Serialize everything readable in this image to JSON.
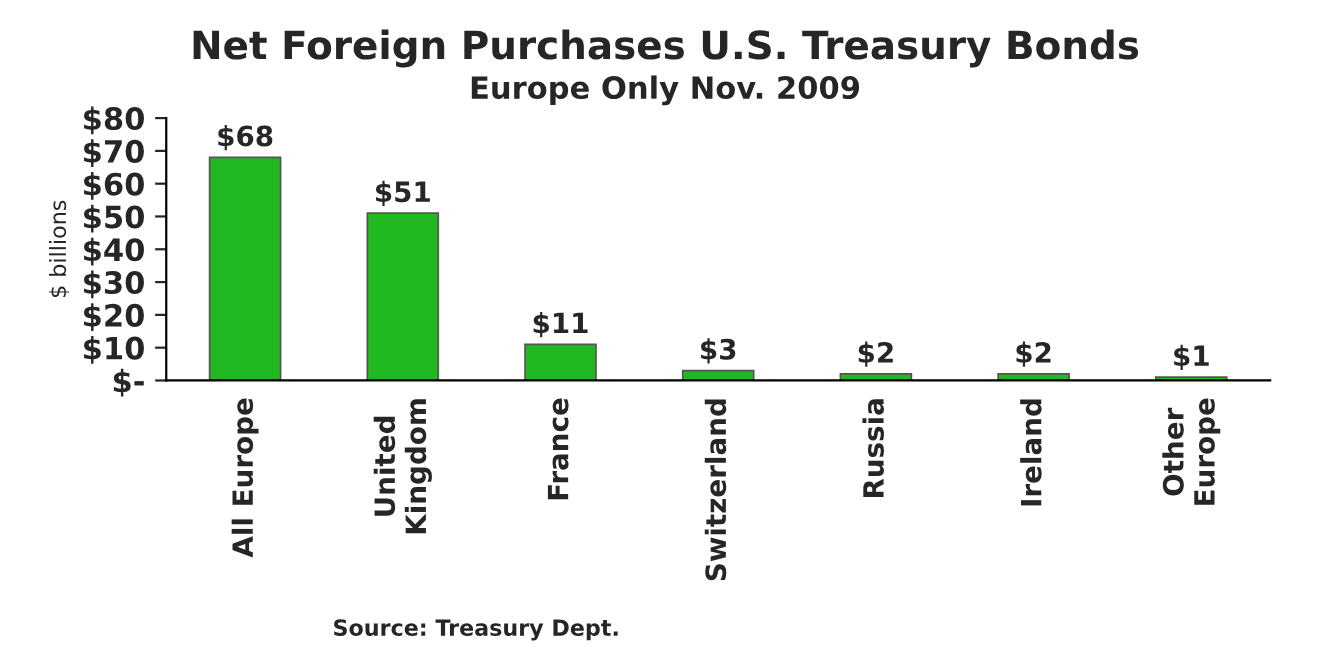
{
  "chart_data": {
    "type": "bar",
    "title": "Net Foreign Purchases U.S. Treasury Bonds",
    "subtitle": "Europe Only Nov. 2009",
    "ylabel": "$ billions",
    "categories": [
      "All Europe",
      "United\nKingdom",
      "France",
      "Switzerland",
      "Russia",
      "Ireland",
      "Other\nEurope"
    ],
    "values": [
      68,
      51,
      11,
      3,
      2,
      2,
      1
    ],
    "value_labels": [
      "$68",
      "$51",
      "$11",
      "$3",
      "$2",
      "$2",
      "$1"
    ],
    "color": "#22b822",
    "ylim": [
      0,
      80
    ],
    "yticks": [
      {
        "value": 0,
        "label": "$-"
      },
      {
        "value": 10,
        "label": "$10"
      },
      {
        "value": 20,
        "label": "$20"
      },
      {
        "value": 30,
        "label": "$30"
      },
      {
        "value": 40,
        "label": "$40"
      },
      {
        "value": 50,
        "label": "$50"
      },
      {
        "value": 60,
        "label": "$60"
      },
      {
        "value": 70,
        "label": "$70"
      },
      {
        "value": 80,
        "label": "$80"
      }
    ],
    "annotations": [
      "Source: Treasury Dept."
    ]
  }
}
